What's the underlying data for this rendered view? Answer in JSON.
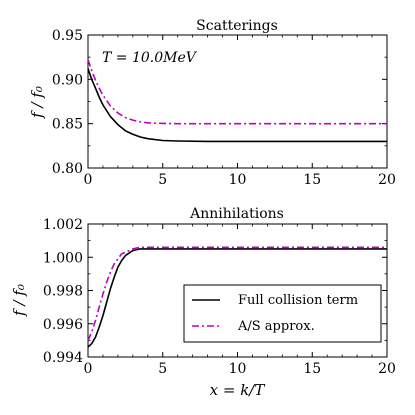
{
  "colors": {
    "full": "#000000",
    "approx": "#bf00bf"
  },
  "chart_data": [
    {
      "type": "line",
      "title": "Scatterings",
      "xlabel": "",
      "ylabel": "f / f₀",
      "annotation": "T = 10.0MeV",
      "xlim": [
        0,
        20
      ],
      "ylim": [
        0.8,
        0.95
      ],
      "xticks": [
        "0",
        "5",
        "10",
        "15",
        "20"
      ],
      "yticks": [
        "0.80",
        "0.85",
        "0.90",
        "0.95"
      ],
      "ytick_values": [
        0.8,
        0.85,
        0.9,
        0.95
      ],
      "series": [
        {
          "name": "Full collision term",
          "style": "solid",
          "color": "#000000",
          "x": [
            0,
            0.25,
            0.5,
            0.75,
            1,
            1.5,
            2,
            2.5,
            3,
            3.5,
            4,
            5,
            6,
            8,
            10,
            15,
            20
          ],
          "y": [
            0.912,
            0.9,
            0.89,
            0.88,
            0.871,
            0.858,
            0.849,
            0.842,
            0.838,
            0.835,
            0.833,
            0.831,
            0.8305,
            0.83,
            0.83,
            0.83,
            0.83
          ]
        },
        {
          "name": "A/S approx.",
          "style": "dashdot",
          "color": "#bf00bf",
          "x": [
            0,
            0.25,
            0.5,
            0.75,
            1,
            1.5,
            2,
            2.5,
            3,
            3.5,
            4,
            5,
            6,
            8,
            10,
            15,
            20
          ],
          "y": [
            0.922,
            0.91,
            0.899,
            0.89,
            0.882,
            0.87,
            0.862,
            0.857,
            0.854,
            0.852,
            0.851,
            0.8503,
            0.85,
            0.85,
            0.85,
            0.85,
            0.85
          ]
        }
      ]
    },
    {
      "type": "line",
      "title": "Annihilations",
      "xlabel": "x = k/T",
      "ylabel": "f / f₀",
      "xlim": [
        0,
        20
      ],
      "ylim": [
        0.994,
        1.002
      ],
      "xticks": [
        "0",
        "5",
        "10",
        "15",
        "20"
      ],
      "yticks": [
        "0.994",
        "0.996",
        "0.998",
        "1.000",
        "1.002"
      ],
      "ytick_values": [
        0.994,
        0.996,
        0.998,
        1.0,
        1.002
      ],
      "legend": {
        "placement": "lower-right",
        "entries": [
          "Full collision term",
          "A/S approx."
        ]
      },
      "series": [
        {
          "name": "Full collision term",
          "style": "solid",
          "color": "#000000",
          "x": [
            0,
            0.25,
            0.5,
            0.75,
            1,
            1.25,
            1.5,
            1.75,
            2,
            2.25,
            2.5,
            3,
            3.5,
            4,
            5,
            6,
            8,
            10,
            15,
            20
          ],
          "y": [
            0.9946,
            0.9948,
            0.9952,
            0.9958,
            0.9965,
            0.9973,
            0.9981,
            0.9988,
            0.9994,
            0.9998,
            1.0001,
            1.0004,
            1.0005,
            1.0005,
            1.0005,
            1.0005,
            1.0005,
            1.0005,
            1.0005,
            1.0005
          ]
        },
        {
          "name": "A/S approx.",
          "style": "dashdot",
          "color": "#bf00bf",
          "x": [
            0,
            0.25,
            0.5,
            0.75,
            1,
            1.25,
            1.5,
            1.75,
            2,
            2.25,
            2.5,
            3,
            3.5,
            4,
            5,
            6,
            8,
            10,
            15,
            20
          ],
          "y": [
            0.995,
            0.9955,
            0.9962,
            0.997,
            0.9978,
            0.9985,
            0.9991,
            0.9996,
            0.9999,
            1.0002,
            1.0003,
            1.0005,
            1.0006,
            1.0006,
            1.0006,
            1.0006,
            1.0006,
            1.0006,
            1.0006,
            1.0006
          ]
        }
      ]
    }
  ]
}
